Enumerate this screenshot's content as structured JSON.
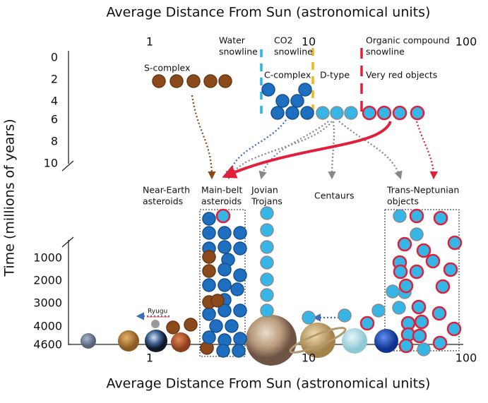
{
  "top_axis": {
    "title": "Average Distance From Sun (astronomical units)",
    "ticks": [
      1,
      10,
      100
    ]
  },
  "bottom_axis": {
    "title": "Average Distance From Sun (astronomical units)",
    "ticks": [
      1,
      10,
      100
    ]
  },
  "y_axis": {
    "title": "Time (millions of years)",
    "upper_ticks": [
      0,
      2,
      4,
      6,
      8,
      10
    ],
    "lower_ticks": [
      1000,
      2000,
      3000,
      4000,
      4600
    ]
  },
  "snowlines": [
    {
      "lines": [
        "Water",
        "snowline"
      ]
    },
    {
      "lines": [
        "CO2",
        "snowline"
      ]
    },
    {
      "lines": [
        "Organic compound",
        "snowline"
      ]
    }
  ],
  "groups": [
    "S-complex",
    "C-complex",
    "D-type",
    "Very red objects"
  ],
  "populations": [
    {
      "lines": [
        "Near-Earth",
        "asteroids"
      ]
    },
    {
      "lines": [
        "Main-belt",
        "asteroids"
      ]
    },
    {
      "lines": [
        "Jovian",
        "Trojans"
      ]
    },
    {
      "lines": [
        "Centaurs"
      ]
    },
    {
      "lines": [
        "Trans-Neptunian",
        "objects"
      ]
    }
  ],
  "ryugu": "Ryugu"
}
